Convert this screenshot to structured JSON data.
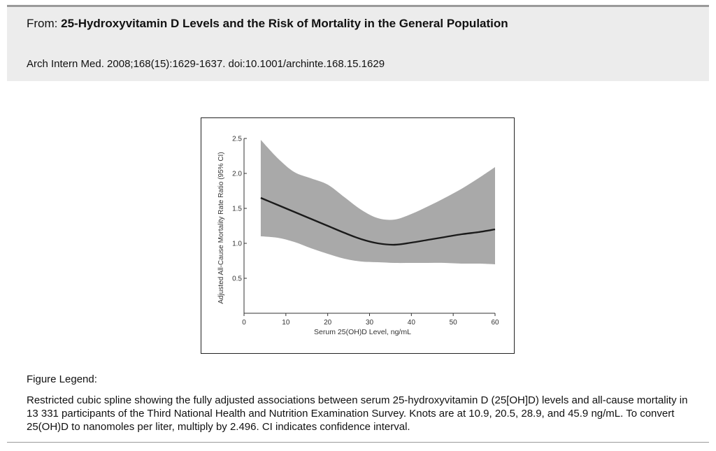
{
  "header": {
    "from_label": "From:",
    "article_title": "25-Hydroxyvitamin D Levels and the Risk of Mortality in the General Population",
    "citation": "Arch Intern Med. 2008;168(15):1629-1637. doi:10.1001/archinte.168.15.1629"
  },
  "legend": {
    "title": "Figure Legend:",
    "text": "Restricted cubic spline showing the fully adjusted associations between serum 25-hydroxyvitamin D (25[OH]D) levels and all-cause mortality in 13 331 participants of the Third National Health and Nutrition Examination Survey. Knots are at 10.9, 20.5, 28.9, and 45.9 ng/mL. To convert 25(OH)D to nanomoles per liter, multiply by 2.496. CI indicates confidence interval."
  },
  "chart_data": {
    "type": "line",
    "title": "",
    "xlabel": "Serum 25(OH)D Level, ng/mL",
    "ylabel": "Adjusted All-Cause Mortality Rate Ratio (95% CI)",
    "xlim": [
      0,
      60
    ],
    "ylim": [
      0,
      2.5
    ],
    "x_ticks": [
      0,
      10,
      20,
      30,
      40,
      50,
      60
    ],
    "y_ticks": [
      0.5,
      1.0,
      1.5,
      2.0,
      2.5
    ],
    "x_tick_labels": [
      "0",
      "10",
      "20",
      "30",
      "40",
      "50",
      "60"
    ],
    "y_tick_labels": [
      "0.5",
      "1.0",
      "1.5",
      "2.0",
      "2.5"
    ],
    "grid": false,
    "colors": {
      "line": "#1a1a1a",
      "band": "#a9a9a9",
      "axis": "#333333"
    },
    "x": [
      4,
      8,
      12,
      16,
      20,
      24,
      28,
      32,
      36,
      40,
      44,
      48,
      52,
      56,
      60
    ],
    "series": [
      {
        "values": [
          1.65,
          1.55,
          1.45,
          1.35,
          1.25,
          1.15,
          1.06,
          1.0,
          0.98,
          1.01,
          1.05,
          1.09,
          1.13,
          1.16,
          1.2
        ]
      }
    ],
    "ci_lower": [
      1.1,
      1.08,
      1.02,
      0.93,
      0.85,
      0.78,
      0.74,
      0.73,
      0.72,
      0.72,
      0.72,
      0.72,
      0.71,
      0.71,
      0.7
    ],
    "ci_upper": [
      2.48,
      2.22,
      2.02,
      1.93,
      1.84,
      1.66,
      1.48,
      1.36,
      1.34,
      1.42,
      1.53,
      1.65,
      1.78,
      1.93,
      2.09
    ]
  }
}
